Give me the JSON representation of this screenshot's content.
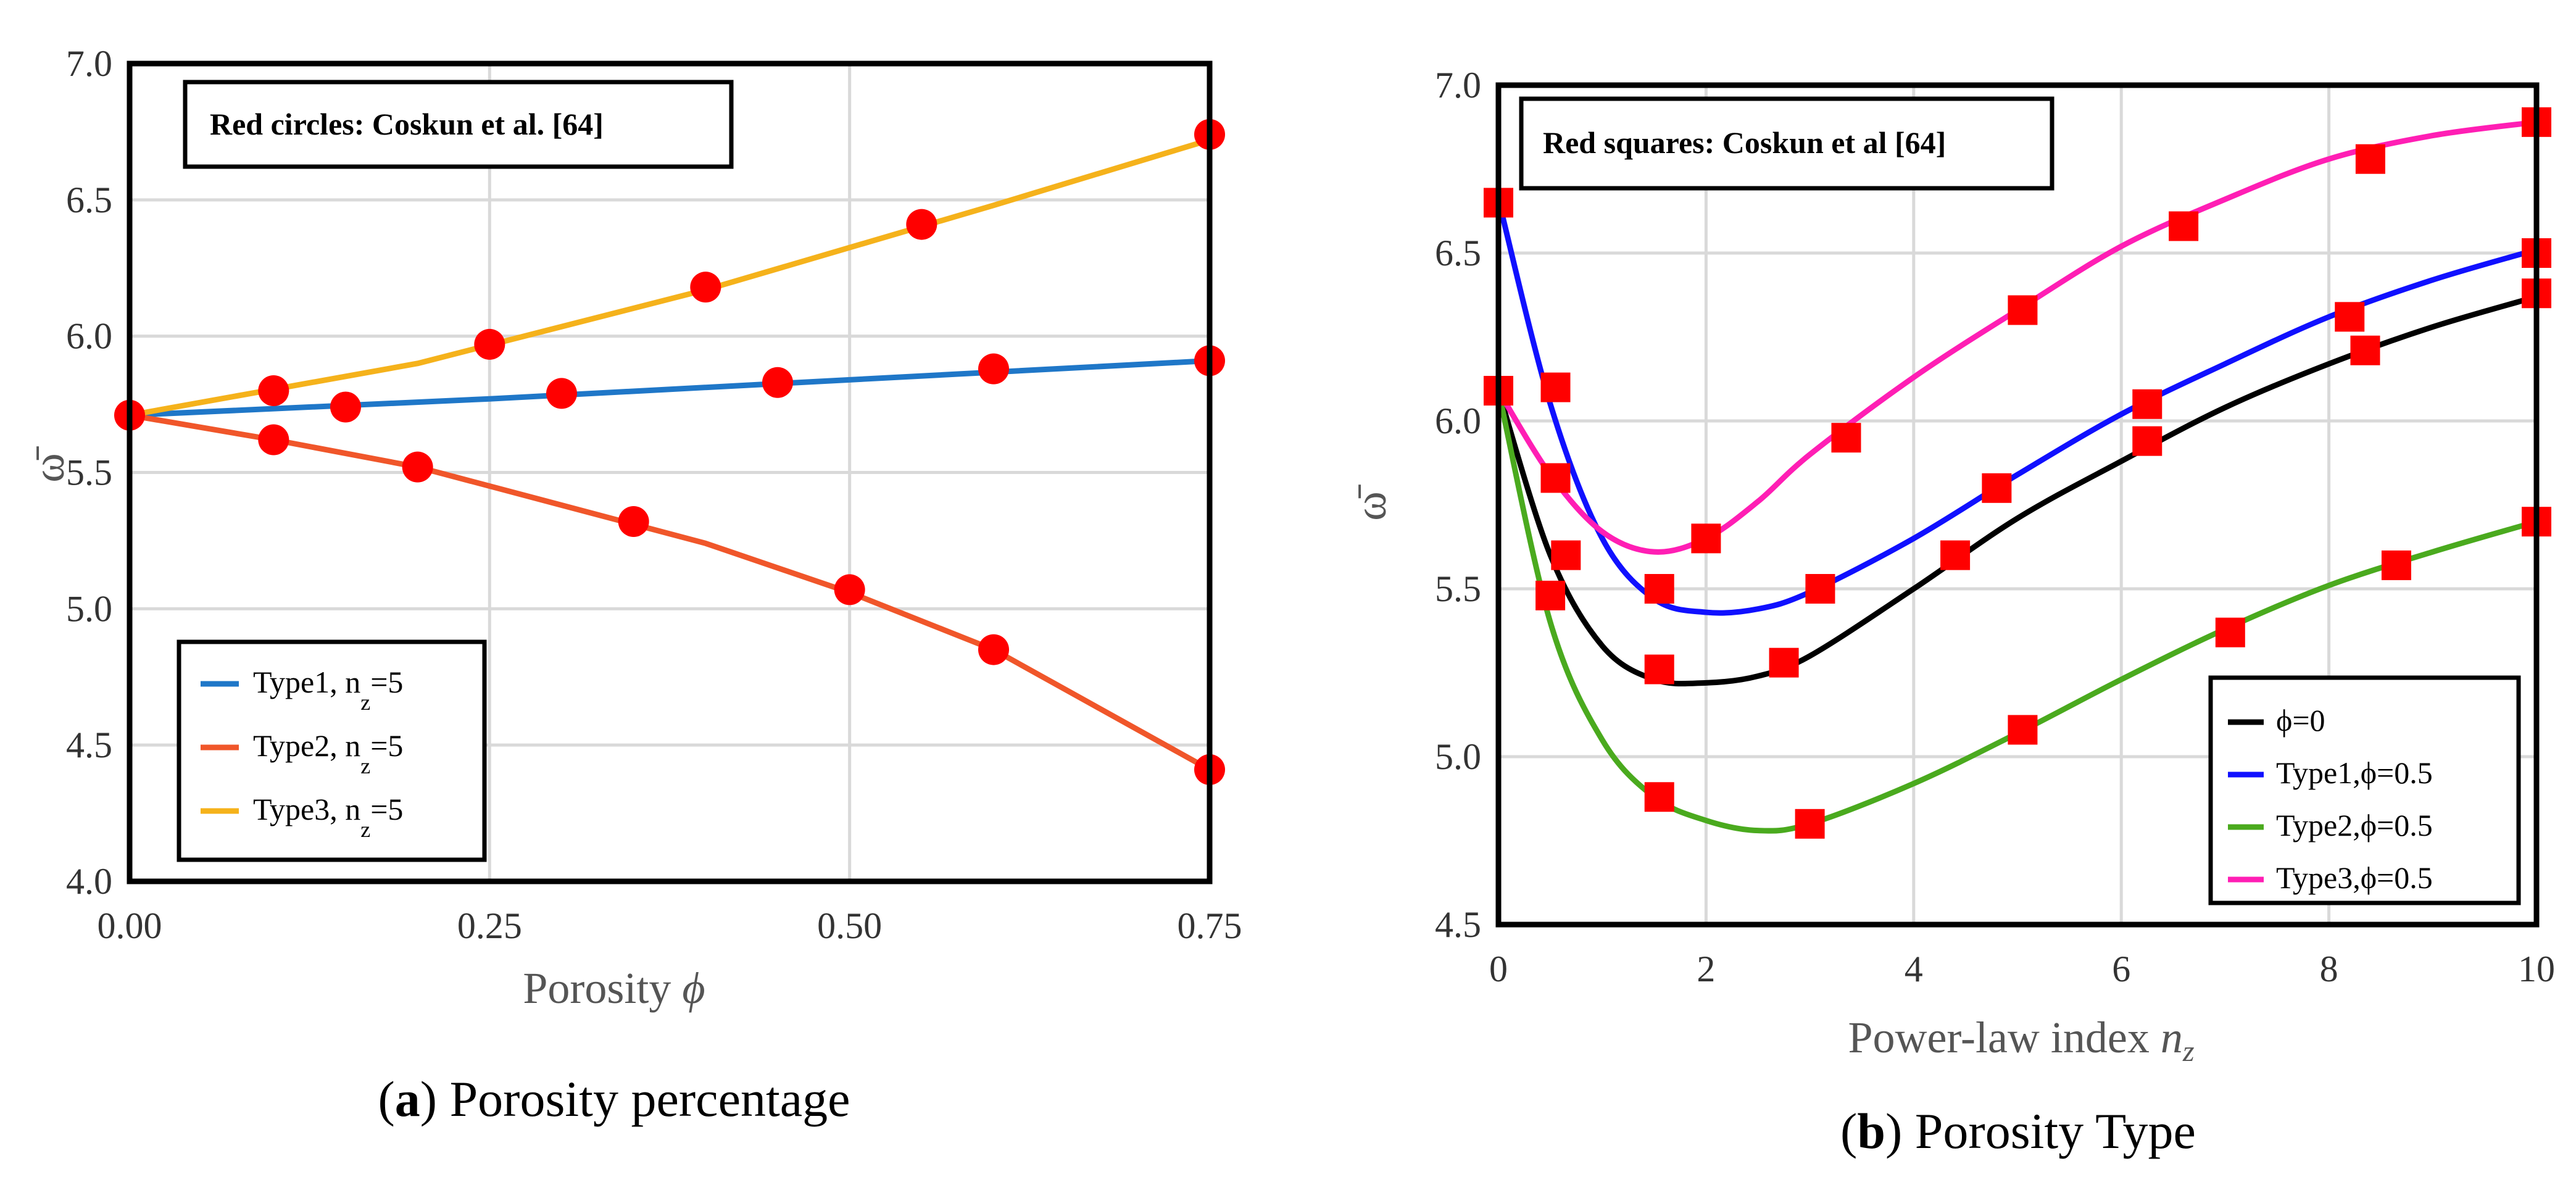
{
  "chart_data": [
    {
      "type": "line",
      "panel": "a",
      "caption_letter": "a",
      "caption_text": "Porosity percentage",
      "xlabel": "Porosity",
      "xlabel_symbol": "ϕ",
      "ylabel": "ω̄",
      "xlim": [
        0,
        0.75
      ],
      "ylim": [
        4.0,
        7.0
      ],
      "xticks": [
        0,
        0.25,
        0.5,
        0.75
      ],
      "xtick_labels": [
        "0.00",
        "0.25",
        "0.50",
        "0.75"
      ],
      "yticks": [
        4.0,
        4.5,
        5.0,
        5.5,
        6.0,
        6.5,
        7.0
      ],
      "ytick_labels": [
        "4.0",
        "4.5",
        "5.0",
        "5.5",
        "6.0",
        "6.5",
        "7.0"
      ],
      "grid": true,
      "annotation": "Red circles: Coskun et al.  [64]",
      "legend_position": "bottom-left",
      "series": [
        {
          "name": "Type1",
          "legend_main": "Type1, n",
          "legend_sub": "z",
          "legend_tail": "=5",
          "color": "#1f77c8",
          "x": [
            0,
            0.25,
            0.5,
            0.75
          ],
          "y": [
            5.71,
            5.77,
            5.84,
            5.91
          ]
        },
        {
          "name": "Type2",
          "legend_main": "Type2, n",
          "legend_sub": "z",
          "legend_tail": "=5",
          "color": "#f0562a",
          "x": [
            0,
            0.1,
            0.2,
            0.3,
            0.4,
            0.5,
            0.6,
            0.75
          ],
          "y": [
            5.71,
            5.62,
            5.52,
            5.38,
            5.24,
            5.06,
            4.85,
            4.41
          ]
        },
        {
          "name": "Type3",
          "legend_main": "Type3, n",
          "legend_sub": "z",
          "legend_tail": "=5",
          "color": "#f5b21b",
          "x": [
            0,
            0.2,
            0.4,
            0.6,
            0.75
          ],
          "y": [
            5.71,
            5.9,
            6.17,
            6.48,
            6.72
          ]
        }
      ],
      "reference": {
        "marker": "circle",
        "color": "#ff0000",
        "points": [
          [
            0,
            5.71
          ],
          [
            0.1,
            5.8
          ],
          [
            0.15,
            5.74
          ],
          [
            0.3,
            5.79
          ],
          [
            0.45,
            5.83
          ],
          [
            0.6,
            5.88
          ],
          [
            0.75,
            5.91
          ],
          [
            0.1,
            5.62
          ],
          [
            0.2,
            5.52
          ],
          [
            0.35,
            5.32
          ],
          [
            0.5,
            5.07
          ],
          [
            0.6,
            4.85
          ],
          [
            0.75,
            4.41
          ],
          [
            0.25,
            5.97
          ],
          [
            0.4,
            6.18
          ],
          [
            0.55,
            6.41
          ],
          [
            0.75,
            6.74
          ]
        ]
      }
    },
    {
      "type": "line",
      "panel": "b",
      "caption_letter": "b",
      "caption_text": "Porosity Type",
      "xlabel": "Power-law index",
      "xlabel_symbol": "n",
      "xlabel_sub": "z",
      "ylabel": "ω̄",
      "xlim": [
        0,
        10
      ],
      "ylim": [
        4.5,
        7.0
      ],
      "xticks": [
        0,
        2,
        4,
        6,
        8,
        10
      ],
      "xtick_labels": [
        "0",
        "2",
        "4",
        "6",
        "8",
        "10"
      ],
      "yticks": [
        4.5,
        5.0,
        5.5,
        6.0,
        6.5,
        7.0
      ],
      "ytick_labels": [
        "4.5",
        "5.0",
        "5.5",
        "6.0",
        "6.5",
        "7.0"
      ],
      "grid": true,
      "annotation": "Red squares: Coskun et al  [64]",
      "legend_position": "bottom-right",
      "series": [
        {
          "name": "ϕ=0",
          "legend_main": "ϕ=0",
          "color": "#000000",
          "x": [
            0,
            0.5,
            1,
            1.5,
            2,
            2.5,
            3,
            4,
            5,
            6,
            7,
            8,
            9,
            10
          ],
          "y": [
            6.09,
            5.6,
            5.33,
            5.23,
            5.22,
            5.24,
            5.3,
            5.5,
            5.71,
            5.88,
            6.04,
            6.17,
            6.28,
            6.37
          ]
        },
        {
          "name": "Type1,ϕ=0.5",
          "legend_main": "Type1,ϕ=0.5",
          "color": "#1010ff",
          "x": [
            0,
            0.5,
            1,
            1.5,
            2,
            2.5,
            3,
            4,
            5,
            6,
            7,
            8,
            9,
            10
          ],
          "y": [
            6.66,
            6.05,
            5.65,
            5.47,
            5.43,
            5.44,
            5.49,
            5.65,
            5.84,
            6.02,
            6.17,
            6.31,
            6.42,
            6.51
          ]
        },
        {
          "name": "Type2,ϕ=0.5",
          "legend_main": "Type2,ϕ=0.5",
          "color": "#4aaa1e",
          "x": [
            0,
            0.5,
            1,
            1.5,
            2,
            2.5,
            3,
            4,
            5,
            6,
            7,
            8,
            9,
            10
          ],
          "y": [
            6.09,
            5.4,
            5.05,
            4.88,
            4.81,
            4.78,
            4.8,
            4.92,
            5.07,
            5.23,
            5.38,
            5.51,
            5.61,
            5.7
          ]
        },
        {
          "name": "Type3,ϕ=0.5",
          "legend_main": "Type3,ϕ=0.5",
          "color": "#ff1eb4",
          "x": [
            0,
            0.5,
            1,
            1.5,
            2,
            2.5,
            3,
            4,
            5,
            6,
            7,
            8,
            9,
            10
          ],
          "y": [
            6.09,
            5.84,
            5.67,
            5.61,
            5.65,
            5.76,
            5.9,
            6.13,
            6.33,
            6.52,
            6.66,
            6.78,
            6.85,
            6.89
          ]
        }
      ],
      "reference": {
        "marker": "square",
        "color": "#ff0000",
        "points": [
          [
            0,
            6.65
          ],
          [
            0,
            6.09
          ],
          [
            0.55,
            6.1
          ],
          [
            0.55,
            5.83
          ],
          [
            0.65,
            5.6
          ],
          [
            0.5,
            5.48
          ],
          [
            1.55,
            5.5
          ],
          [
            1.55,
            5.26
          ],
          [
            1.55,
            4.88
          ],
          [
            2.0,
            5.65
          ],
          [
            2.75,
            5.28
          ],
          [
            3.0,
            4.8
          ],
          [
            3.1,
            5.5
          ],
          [
            3.35,
            5.95
          ],
          [
            4.4,
            5.6
          ],
          [
            4.8,
            5.8
          ],
          [
            5.05,
            6.33
          ],
          [
            5.05,
            5.08
          ],
          [
            6.25,
            6.05
          ],
          [
            6.25,
            5.94
          ],
          [
            6.6,
            6.58
          ],
          [
            7.05,
            5.37
          ],
          [
            8.2,
            6.31
          ],
          [
            8.35,
            6.21
          ],
          [
            8.4,
            6.78
          ],
          [
            8.65,
            5.57
          ],
          [
            10,
            6.89
          ],
          [
            10,
            6.5
          ],
          [
            10,
            6.38
          ],
          [
            10,
            5.7
          ]
        ]
      }
    }
  ]
}
